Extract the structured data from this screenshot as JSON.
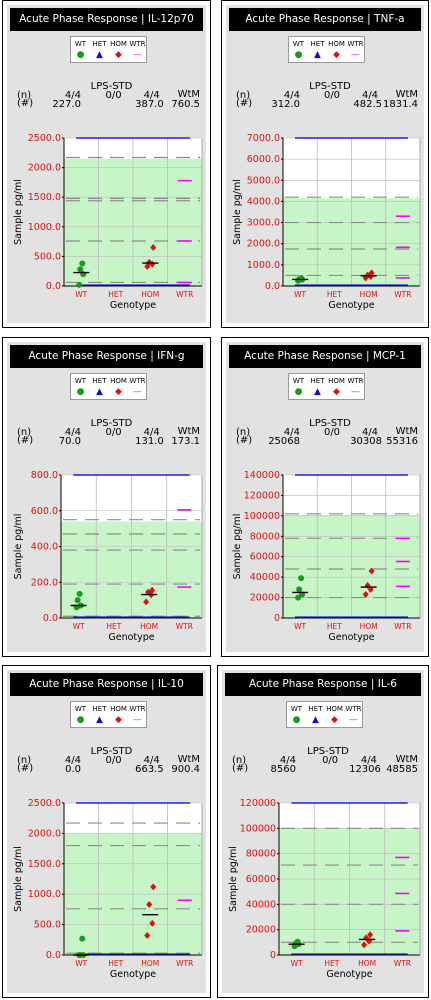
{
  "legend": {
    "items": [
      {
        "label": "WT",
        "symbol": "●",
        "color": "#1a9a1a"
      },
      {
        "label": "HET",
        "symbol": "▲",
        "color": "#1010cc"
      },
      {
        "label": "HOM",
        "symbol": "◆",
        "color": "#e01010"
      },
      {
        "label": "WTR",
        "symbol": "—",
        "color": "#ff00ff"
      }
    ]
  },
  "stats_labels": {
    "condition": "LPS-STD",
    "n": "(n)",
    "mean": "(#)",
    "wtm": "WtM"
  },
  "chart_data": [
    {
      "type": "scatter",
      "title": "Acute Phase Response | IL-12p70",
      "xlabel": "Genotype",
      "ylabel": "Sample pg/ml",
      "categories": [
        "WT",
        "HET",
        "HOM",
        "WTR"
      ],
      "ylim": [
        0,
        2500
      ],
      "yticks": [
        "0.0",
        "500.0",
        "1000.0",
        "1500.0",
        "2000.0",
        "2500.0"
      ],
      "counts": {
        "wt": "4/4",
        "het": "0/0",
        "hom": "4/4"
      },
      "means": {
        "wt": "227.0",
        "hom": "387.0",
        "wtr": "760.5"
      },
      "green_range": [
        0,
        2150
      ],
      "gray_lines": [
        2170,
        1480,
        1440,
        760,
        60
      ],
      "wt_points": [
        20,
        200,
        280,
        380
      ],
      "wt_mean": 227,
      "hom_points": [
        330,
        370,
        400,
        650
      ],
      "hom_mean": 387,
      "wtr_lines": [
        1780,
        760,
        60
      ]
    },
    {
      "type": "scatter",
      "title": "Acute Phase Response | TNF-a",
      "xlabel": "Genotype",
      "ylabel": "Sample pg/ml",
      "categories": [
        "WT",
        "HET",
        "HOM",
        "WTR"
      ],
      "ylim": [
        0,
        7000
      ],
      "yticks": [
        "0.0",
        "1000.0",
        "2000.0",
        "3000.0",
        "4000.0",
        "5000.0",
        "6000.0",
        "7000.0"
      ],
      "counts": {
        "wt": "4/4",
        "het": "0/0",
        "hom": "4/4"
      },
      "means": {
        "wt": "312.0",
        "hom": "482.5",
        "wtr": "1831.4"
      },
      "green_range": [
        0,
        4150
      ],
      "gray_lines": [
        4200,
        3000,
        1750,
        500
      ],
      "wt_points": [
        250,
        300,
        320,
        380
      ],
      "wt_mean": 312,
      "hom_points": [
        380,
        450,
        520,
        620
      ],
      "hom_mean": 482.5,
      "wtr_lines": [
        3300,
        1830,
        380
      ]
    },
    {
      "type": "scatter",
      "title": "Acute Phase Response | IFN-g",
      "xlabel": "Genotype",
      "ylabel": "Sample pg/ml",
      "categories": [
        "WT",
        "HET",
        "HOM",
        "WTR"
      ],
      "ylim": [
        0,
        800
      ],
      "yticks": [
        "0.0",
        "200.0",
        "400.0",
        "600.0",
        "800.0"
      ],
      "counts": {
        "wt": "4/4",
        "het": "0/0",
        "hom": "4/4"
      },
      "means": {
        "wt": "70.0",
        "hom": "131.0",
        "wtr": "173.1"
      },
      "green_range": [
        0,
        540
      ],
      "gray_lines": [
        550,
        470,
        380,
        190,
        10
      ],
      "wt_points": [
        60,
        70,
        100,
        135
      ],
      "wt_mean": 70,
      "hom_points": [
        90,
        130,
        145,
        155
      ],
      "hom_mean": 131,
      "wtr_lines": [
        605,
        173
      ]
    },
    {
      "type": "scatter",
      "title": "Acute Phase Response | MCP-1",
      "xlabel": "Genotype",
      "ylabel": "Sample pg/ml",
      "categories": [
        "WT",
        "HET",
        "HOM",
        "WTR"
      ],
      "ylim": [
        0,
        140000
      ],
      "yticks": [
        "0",
        "20000",
        "40000",
        "60000",
        "80000",
        "100000",
        "120000",
        "140000"
      ],
      "counts": {
        "wt": "4/4",
        "het": "0/0",
        "hom": "4/4"
      },
      "means": {
        "wt": "25068",
        "hom": "30308",
        "wtr": "55316"
      },
      "green_range": [
        0,
        101000
      ],
      "gray_lines": [
        102000,
        78000,
        48000,
        20000
      ],
      "wt_points": [
        20000,
        23000,
        28000,
        39000
      ],
      "wt_mean": 25068,
      "hom_points": [
        23000,
        28000,
        32000,
        46000
      ],
      "hom_mean": 30308,
      "wtr_lines": [
        78000,
        55316,
        31000
      ]
    },
    {
      "type": "scatter",
      "title": "Acute Phase Response | IL-10",
      "xlabel": "Genotype",
      "ylabel": "Sample pg/ml",
      "categories": [
        "WT",
        "HET",
        "HOM",
        "WTR"
      ],
      "ylim": [
        0,
        2500
      ],
      "yticks": [
        "0.0",
        "500.0",
        "1000.0",
        "1500.0",
        "2000.0",
        "2500.0"
      ],
      "counts": {
        "wt": "4/4",
        "het": "0/0",
        "hom": "4/4"
      },
      "means": {
        "wt": "0.0",
        "hom": "663.5",
        "wtr": "900.4"
      },
      "green_range": [
        0,
        2000
      ],
      "gray_lines": [
        2170,
        1800,
        760,
        30
      ],
      "wt_points": [
        0,
        0,
        0,
        270
      ],
      "wt_mean": 0,
      "hom_points": [
        320,
        520,
        830,
        1120
      ],
      "hom_mean": 663.5,
      "wtr_lines": [
        900
      ]
    },
    {
      "type": "scatter",
      "title": "Acute Phase Response | IL-6",
      "xlabel": "Genotype",
      "ylabel": "Sample pg/ml",
      "categories": [
        "WT",
        "HET",
        "HOM",
        "WTR"
      ],
      "ylim": [
        0,
        120000
      ],
      "yticks": [
        "0",
        "20000",
        "40000",
        "60000",
        "80000",
        "100000",
        "120000"
      ],
      "counts": {
        "wt": "4/4",
        "het": "0/0",
        "hom": "4/4"
      },
      "means": {
        "wt": "8560",
        "hom": "12306",
        "wtr": "48585"
      },
      "green_range": [
        0,
        100000
      ],
      "gray_lines": [
        100000,
        71000,
        40000,
        10000
      ],
      "wt_points": [
        7000,
        8500,
        9000,
        10500
      ],
      "wt_mean": 8560,
      "hom_points": [
        8000,
        11000,
        13500,
        16000
      ],
      "hom_mean": 12306,
      "wtr_lines": [
        77000,
        48585,
        19000
      ]
    }
  ]
}
